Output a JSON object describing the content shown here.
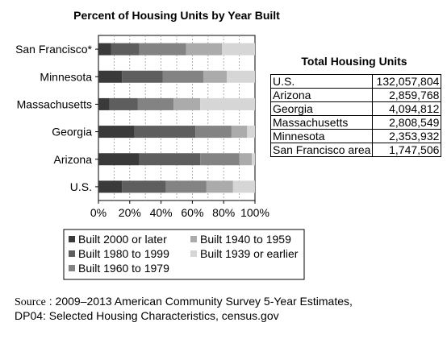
{
  "chart_data": {
    "type": "bar",
    "orientation": "horizontal",
    "stacked": true,
    "percent": true,
    "title": "Percent of Housing Units by Year Built",
    "categories": [
      "San Francisco*",
      "Minnesota",
      "Massachusetts",
      "Georgia",
      "Arizona",
      "U.S."
    ],
    "series": [
      {
        "name": "Built 2000 or later",
        "color": "#3a3a3a",
        "values": [
          8,
          15,
          7,
          23,
          26,
          15
        ]
      },
      {
        "name": "Built 1980 to 1999",
        "color": "#5e5e5e",
        "values": [
          18,
          26,
          18,
          39,
          39,
          28
        ]
      },
      {
        "name": "Built 1960 to 1979",
        "color": "#838383",
        "values": [
          30,
          26,
          23,
          23,
          25,
          26
        ]
      },
      {
        "name": "Built 1940 to 1959",
        "color": "#ababab",
        "values": [
          23,
          15,
          17,
          10,
          8,
          17
        ]
      },
      {
        "name": "Built 1939 or earlier",
        "color": "#d6d6d6",
        "values": [
          21,
          18,
          35,
          5,
          2,
          14
        ]
      }
    ],
    "xlim": [
      0,
      100
    ],
    "xticks": [
      "0%",
      "20%",
      "40%",
      "60%",
      "80%",
      "100%"
    ],
    "grid": "vertical dashed",
    "legend": "bottom"
  },
  "table": {
    "title": "Total Housing Units",
    "rows": [
      {
        "region": "U.S.",
        "value": "132,057,804"
      },
      {
        "region": "Arizona",
        "value": "2,859,768"
      },
      {
        "region": "Georgia",
        "value": "4,094,812"
      },
      {
        "region": "Massachusetts",
        "value": "2,808,549"
      },
      {
        "region": "Minnesota",
        "value": "2,353,932"
      },
      {
        "region": "San Francisco area",
        "value": "1,747,506"
      }
    ]
  },
  "source": {
    "label": "Source",
    "line1": " : 2009–2013 American Community Survey 5-Year Estimates,",
    "line2": "DP04: Selected Housing Characteristics, census.gov"
  }
}
